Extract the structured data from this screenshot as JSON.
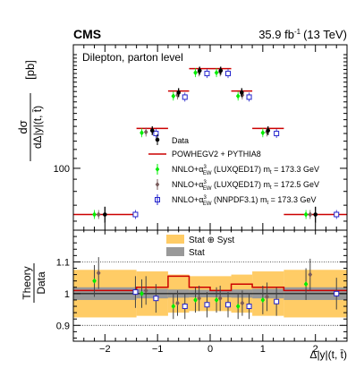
{
  "header": {
    "experiment": "CMS",
    "lumi_value": "35.9 fb",
    "lumi_unit_sup": "-1",
    "energy": "(13 TeV)"
  },
  "top_panel": {
    "annotation": "Dilepton, parton level",
    "ylabel_num": "dσ",
    "ylabel_den": "dΔ|y|(t, t̄)",
    "ylabel_unit": "[pb]"
  },
  "bottom_panel": {
    "ylabel_num": "Theory",
    "ylabel_den": "Data"
  },
  "xlabel": "Δ|y|(t, t̄)",
  "legend": {
    "data": "Data",
    "powheg": "POWHEGV2 + PYTHIA8",
    "nnlo_luxqed_1733_pre": "NNLO+α",
    "nnlo_luxqed_1733_post": " (LUXQED17) m",
    "nnlo_luxqed_1733_mt": " = 173.3 GeV",
    "nnlo_luxqed_1725_pre": "NNLO+α",
    "nnlo_luxqed_1725_post": " (LUXQED17) m",
    "nnlo_luxqed_1725_mt": " = 172.5 GeV",
    "nnlo_nnpdf_pre": "NNLO+α",
    "nnlo_nnpdf_post": " (NNPDF3.1) m",
    "nnlo_nnpdf_mt": " = 173.3 GeV",
    "alpha_sup": "3",
    "alpha_sub": "EW",
    "mt_sub": "t",
    "band_total": "Stat ⊕ Syst",
    "band_stat": "Stat"
  },
  "colors": {
    "data": "#000000",
    "powheg": "#cc0000",
    "luxqed_1733": "#00ee00",
    "luxqed_1725": "#7a5c5c",
    "nnpdf": "#2222cc",
    "band_total": "#ffcc66",
    "band_stat": "#999999"
  },
  "chart_data": [
    {
      "type": "scatter",
      "panel": "top",
      "yscale": "log",
      "xlim": [
        -2.6,
        2.6
      ],
      "ylim": [
        55,
        330
      ],
      "ytick_label": "100",
      "bins": [
        [
          -2.6,
          -1.4
        ],
        [
          -1.4,
          -0.8
        ],
        [
          -0.8,
          -0.4
        ],
        [
          -0.4,
          0.0
        ],
        [
          0.0,
          0.4
        ],
        [
          0.4,
          0.8
        ],
        [
          0.8,
          1.4
        ],
        [
          1.4,
          2.6
        ]
      ],
      "series": [
        {
          "name": "Data",
          "x": [
            -2.0,
            -1.1,
            -0.6,
            -0.2,
            0.2,
            0.6,
            1.1,
            2.0
          ],
          "y": [
            64,
            144,
            208,
            257,
            257,
            208,
            144,
            64
          ],
          "yerr": [
            5,
            6,
            9,
            10,
            10,
            9,
            6,
            5
          ]
        },
        {
          "name": "POWHEGV2 + PYTHIA8",
          "y": [
            64,
            147,
            211,
            262,
            262,
            211,
            147,
            64
          ]
        },
        {
          "name": "NNLO+α3EW (LUXQED17) mt = 173.3 GeV",
          "x": [
            -2.2,
            -1.3,
            -0.7,
            -0.28,
            0.12,
            0.53,
            1.0,
            1.82
          ],
          "y": [
            64,
            141,
            201,
            252,
            252,
            201,
            141,
            64
          ]
        },
        {
          "name": "NNLO+α3EW (LUXQED17) mt = 172.5 GeV",
          "x": [
            -2.12,
            -1.22,
            -0.62,
            -0.21,
            0.19,
            0.61,
            1.08,
            1.9
          ],
          "y": [
            64,
            142,
            203,
            254,
            254,
            203,
            142,
            64
          ]
        },
        {
          "name": "NNLO+α3EW (NNPDF3.1) mt = 173.3 GeV",
          "x": [
            -1.42,
            -1.03,
            -0.48,
            -0.06,
            0.34,
            0.74,
            1.26,
            2.4
          ],
          "y": [
            64,
            140,
            199,
            250,
            250,
            199,
            140,
            64
          ]
        }
      ]
    },
    {
      "type": "scatter",
      "panel": "bottom",
      "xlim": [
        -2.6,
        2.6
      ],
      "ylim": [
        0.85,
        1.2
      ],
      "yticks": [
        0.9,
        1.0,
        1.1
      ],
      "ytick_labels": [
        "0.9",
        "1",
        "1.1"
      ],
      "xticks": [
        -2,
        -1,
        0,
        1,
        2
      ],
      "xtick_labels": [
        "−2",
        "−1",
        "0",
        "1",
        "2"
      ],
      "band_bins": [
        [
          -2.6,
          -1.4
        ],
        [
          -1.4,
          -0.8
        ],
        [
          -0.8,
          -0.4
        ],
        [
          -0.4,
          0.0
        ],
        [
          0.0,
          0.4
        ],
        [
          0.4,
          0.8
        ],
        [
          0.8,
          1.4
        ],
        [
          1.4,
          2.6
        ]
      ],
      "band_total": [
        0.075,
        0.07,
        0.06,
        0.055,
        0.055,
        0.06,
        0.07,
        0.075
      ],
      "band_stat": [
        0.02,
        0.015,
        0.013,
        0.012,
        0.012,
        0.013,
        0.015,
        0.02
      ],
      "powheg_ratio": [
        1.01,
        1.02,
        1.055,
        1.02,
        1.01,
        1.03,
        1.02,
        1.01
      ],
      "series": [
        {
          "name": "NNLO+α3EW (LUXQED17) mt = 173.3 GeV",
          "x": [
            -2.2,
            -1.3,
            -0.7,
            -0.28,
            0.12,
            0.53,
            1.0,
            1.82
          ],
          "y": [
            1.04,
            1.0,
            0.96,
            0.98,
            0.98,
            0.96,
            0.98,
            1.03
          ],
          "yerr": [
            0.05,
            0.045,
            0.04,
            0.04,
            0.04,
            0.04,
            0.045,
            0.05
          ]
        },
        {
          "name": "NNLO+α3EW (LUXQED17) mt = 172.5 GeV",
          "x": [
            -2.12,
            -1.22,
            -0.62,
            -0.21,
            0.19,
            0.61,
            1.08,
            1.9
          ],
          "y": [
            1.065,
            1.01,
            0.97,
            0.985,
            0.985,
            0.97,
            0.99,
            1.06
          ],
          "yerr": [
            0.05,
            0.045,
            0.04,
            0.04,
            0.04,
            0.04,
            0.045,
            0.05
          ]
        },
        {
          "name": "NNLO+α3EW (NNPDF3.1) mt = 173.3 GeV",
          "x": [
            -1.42,
            -1.03,
            -0.48,
            -0.06,
            0.34,
            0.74,
            1.26,
            2.4
          ],
          "y": [
            1.005,
            0.985,
            0.96,
            0.965,
            0.965,
            0.96,
            0.975,
            1.0
          ],
          "yerr": [
            0.05,
            0.045,
            0.04,
            0.04,
            0.04,
            0.04,
            0.045,
            0.05
          ]
        }
      ]
    }
  ]
}
